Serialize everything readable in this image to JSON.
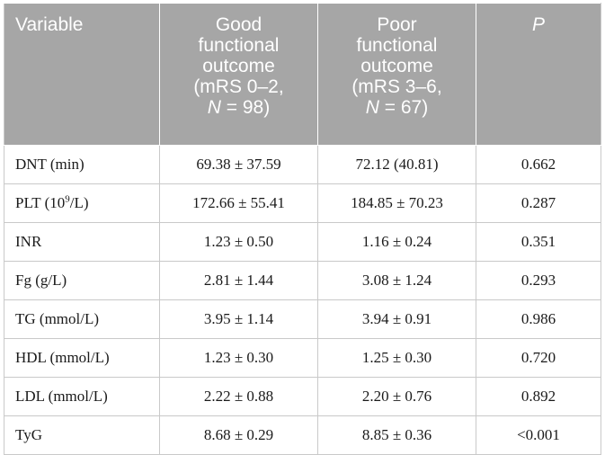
{
  "table": {
    "header": {
      "variable": "Variable",
      "good_lines": [
        "Good",
        "functional",
        "outcome",
        "(mRS 0–2,"
      ],
      "good_n_prefix": "N",
      "good_n_suffix": " = 98)",
      "poor_lines": [
        "Poor",
        "functional",
        "outcome",
        "(mRS 3–6,"
      ],
      "poor_n_prefix": "N",
      "poor_n_suffix": " = 67)",
      "p": "P"
    },
    "rows": [
      {
        "variable": "DNT (min)",
        "good": "69.38 ± 37.59",
        "poor": "72.12 (40.81)",
        "p": "0.662"
      },
      {
        "variable_prefix": "PLT (10",
        "variable_sup": "9",
        "variable_suffix": "/L)",
        "good": "172.66 ± 55.41",
        "poor": "184.85 ± 70.23",
        "p": "0.287"
      },
      {
        "variable": "INR",
        "good": "1.23 ± 0.50",
        "poor": "1.16 ± 0.24",
        "p": "0.351"
      },
      {
        "variable": "Fg (g/L)",
        "good": "2.81 ± 1.44",
        "poor": "3.08 ± 1.24",
        "p": "0.293"
      },
      {
        "variable": "TG (mmol/L)",
        "good": "3.95 ± 1.14",
        "poor": "3.94 ± 0.91",
        "p": "0.986"
      },
      {
        "variable": "HDL (mmol/L)",
        "good": "1.23 ± 0.30",
        "poor": "1.25 ± 0.30",
        "p": "0.720"
      },
      {
        "variable": "LDL (mmol/L)",
        "good": "2.22 ± 0.88",
        "poor": "2.20 ± 0.76",
        "p": "0.892"
      },
      {
        "variable": "TyG",
        "good": "8.68 ± 0.29",
        "poor": "8.85 ± 0.36",
        "p": "<0.001"
      }
    ],
    "colors": {
      "header_bg": "#a6a6a6",
      "header_text": "#ffffff",
      "border": "#c9c9c9",
      "body_text": "#1a1a1a"
    }
  }
}
